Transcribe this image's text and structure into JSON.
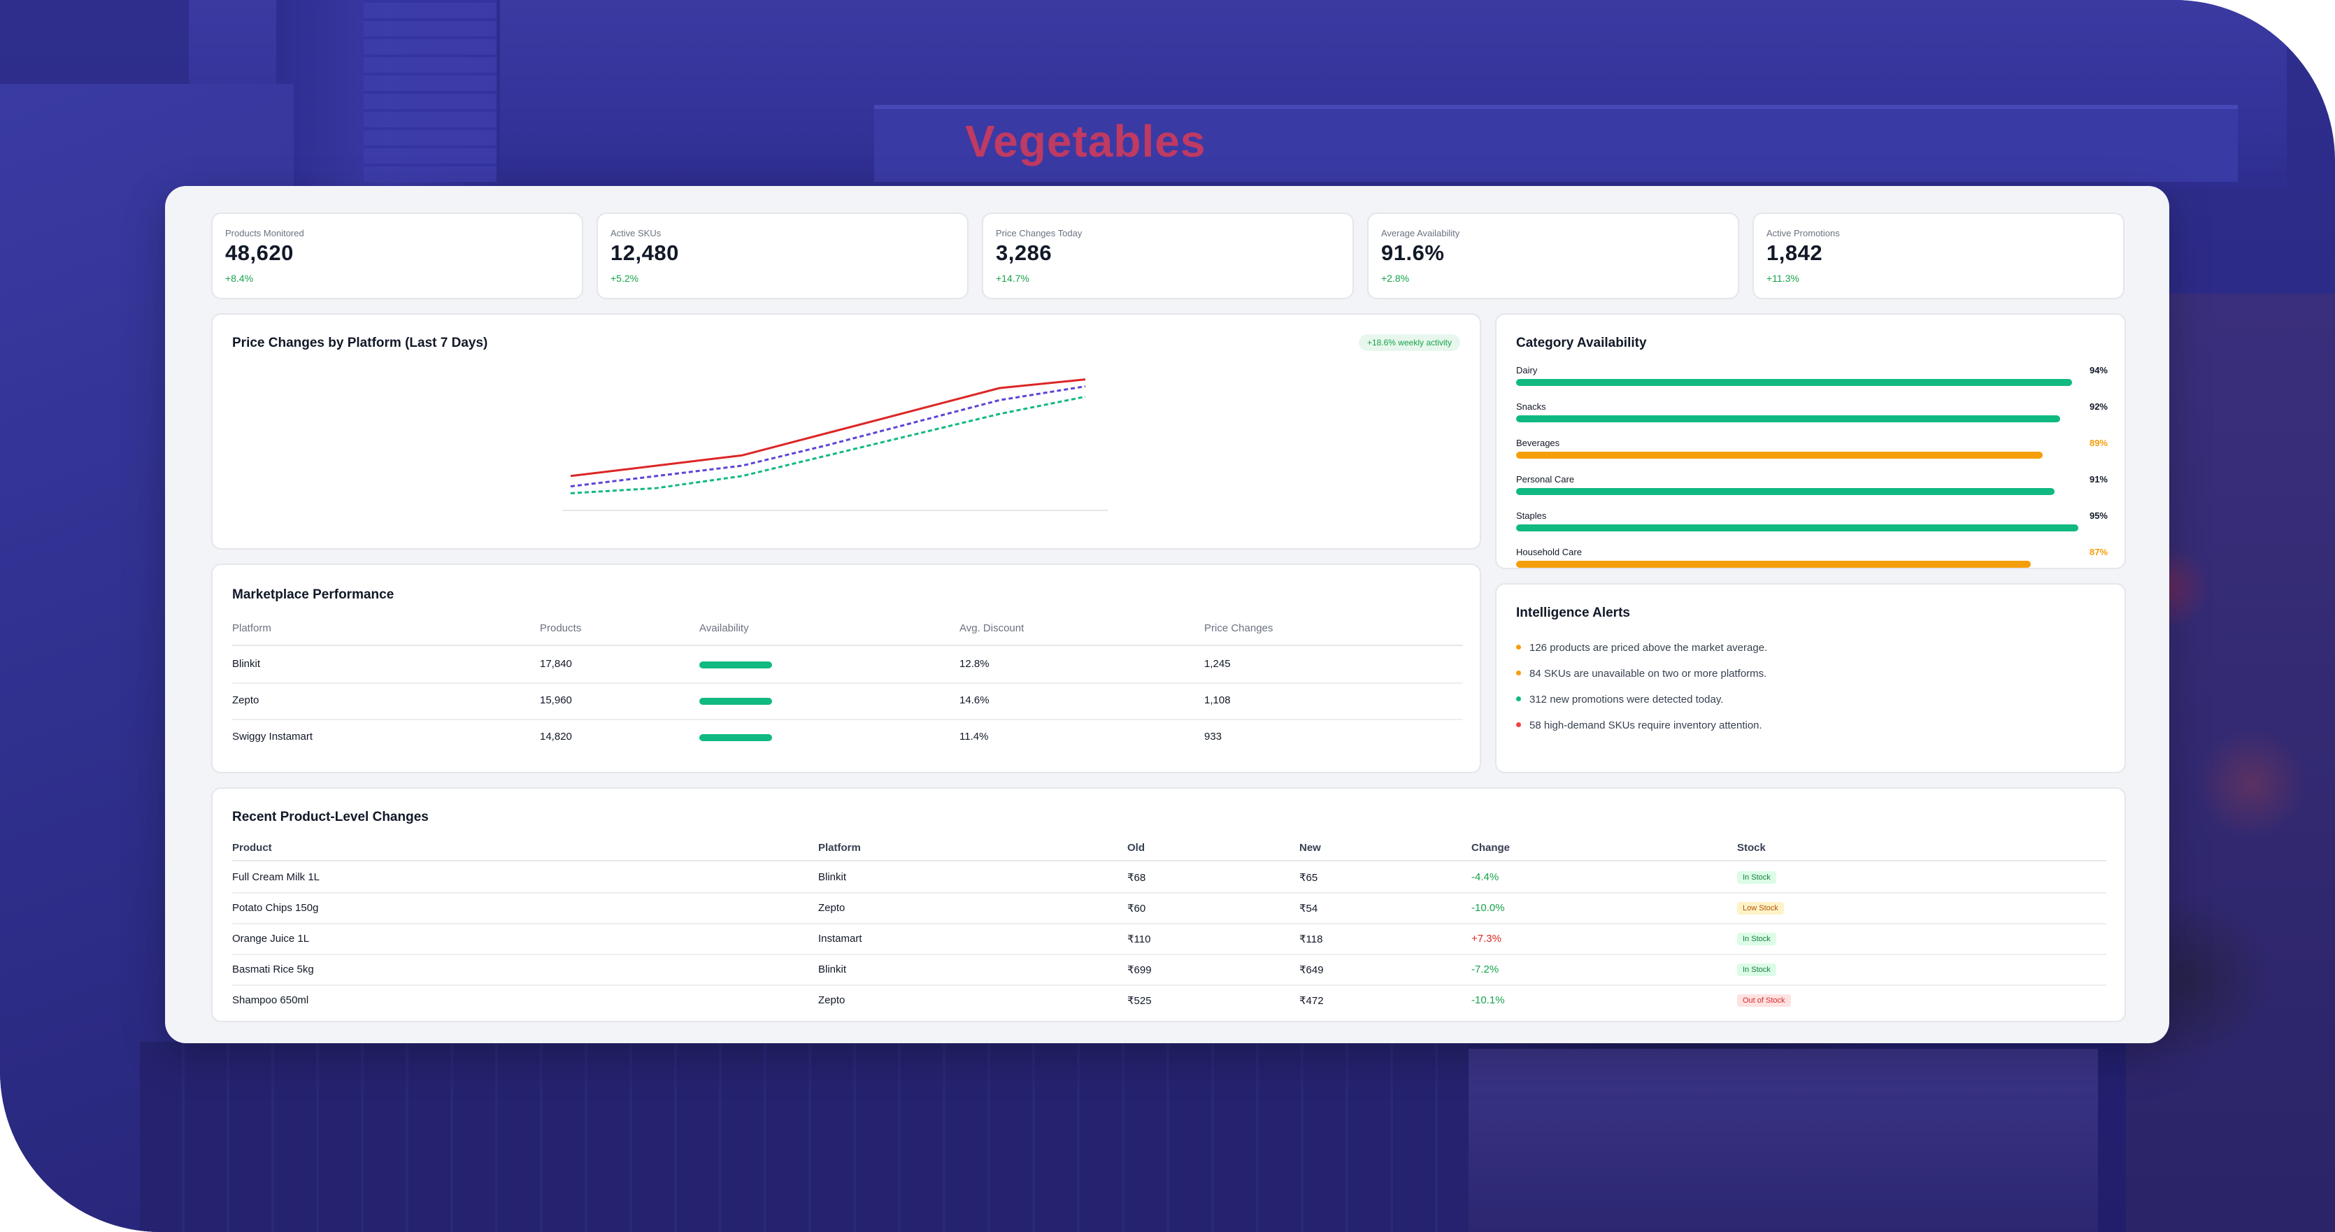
{
  "background": {
    "sign_text": "Vegetables"
  },
  "kpis": [
    {
      "label": "Products Monitored",
      "value": "48,620",
      "delta": "+8.4%"
    },
    {
      "label": "Active SKUs",
      "value": "12,480",
      "delta": "+5.2%"
    },
    {
      "label": "Price Changes Today",
      "value": "3,286",
      "delta": "+14.7%"
    },
    {
      "label": "Average Availability",
      "value": "91.6%",
      "delta": "+2.8%"
    },
    {
      "label": "Active Promotions",
      "value": "1,842",
      "delta": "+11.3%"
    }
  ],
  "price_chart": {
    "title": "Price Changes by Platform (Last 7 Days)",
    "badge": "+18.6% weekly activity"
  },
  "chart_data": {
    "type": "line",
    "title": "Price Changes by Platform (Last 7 Days)",
    "x": [
      1,
      2,
      3,
      4,
      5,
      6,
      7
    ],
    "series": [
      {
        "values": [
          820,
          850,
          880,
          945,
          1010,
          1075,
          1100
        ],
        "color": "#dc2626",
        "style": "solid"
      },
      {
        "values": [
          790,
          820,
          850,
          910,
          975,
          1040,
          1080
        ],
        "color": "#5b45d6",
        "style": "dashed"
      },
      {
        "values": [
          770,
          785,
          820,
          880,
          940,
          1000,
          1050
        ],
        "color": "#10b981",
        "style": "dashed"
      }
    ],
    "ylim": [
      700,
      1150
    ],
    "grid": false
  },
  "category_availability": {
    "title": "Category Availability",
    "items": [
      {
        "name": "Dairy",
        "value": 94,
        "label": "94%",
        "color": "#10b981",
        "text_color": "#111827"
      },
      {
        "name": "Snacks",
        "value": 92,
        "label": "92%",
        "color": "#10b981",
        "text_color": "#111827"
      },
      {
        "name": "Beverages",
        "value": 89,
        "label": "89%",
        "color": "#f59e0b",
        "text_color": "#f59e0b"
      },
      {
        "name": "Personal Care",
        "value": 91,
        "label": "91%",
        "color": "#10b981",
        "text_color": "#111827"
      },
      {
        "name": "Staples",
        "value": 95,
        "label": "95%",
        "color": "#10b981",
        "text_color": "#111827"
      },
      {
        "name": "Household Care",
        "value": 87,
        "label": "87%",
        "color": "#f59e0b",
        "text_color": "#f59e0b"
      }
    ]
  },
  "marketplace": {
    "title": "Marketplace Performance",
    "columns": [
      "Platform",
      "Products",
      "Availability",
      "Avg. Discount",
      "Price Changes"
    ],
    "rows": [
      {
        "platform": "Blinkit",
        "products": "17,840",
        "availability": 0.92,
        "discount": "12.8%",
        "changes": "1,245"
      },
      {
        "platform": "Zepto",
        "products": "15,960",
        "availability": 0.92,
        "discount": "14.6%",
        "changes": "1,108"
      },
      {
        "platform": "Swiggy Instamart",
        "products": "14,820",
        "availability": 0.92,
        "discount": "11.4%",
        "changes": "933"
      }
    ]
  },
  "alerts": {
    "title": "Intelligence Alerts",
    "items": [
      {
        "text": "126 products are priced above the market average.",
        "color": "#f59e0b"
      },
      {
        "text": "84 SKUs are unavailable on two or more platforms.",
        "color": "#f59e0b"
      },
      {
        "text": "312 new promotions were detected today.",
        "color": "#10b981"
      },
      {
        "text": "58 high-demand SKUs require inventory attention.",
        "color": "#ef4444"
      }
    ]
  },
  "recent": {
    "title": "Recent Product-Level Changes",
    "columns": [
      "Product",
      "Platform",
      "Old",
      "New",
      "Change",
      "Stock"
    ],
    "rows": [
      {
        "product": "Full Cream Milk 1L",
        "platform": "Blinkit",
        "old": "₹68",
        "new": "₹65",
        "change": "-4.4%",
        "change_color": "#16a34a",
        "stock": "In Stock",
        "stock_bg": "#dcfce7",
        "stock_fg": "#15803d"
      },
      {
        "product": "Potato Chips 150g",
        "platform": "Zepto",
        "old": "₹60",
        "new": "₹54",
        "change": "-10.0%",
        "change_color": "#16a34a",
        "stock": "Low Stock",
        "stock_bg": "#fef3c7",
        "stock_fg": "#b45309"
      },
      {
        "product": "Orange Juice 1L",
        "platform": "Instamart",
        "old": "₹110",
        "new": "₹118",
        "change": "+7.3%",
        "change_color": "#dc2626",
        "stock": "In Stock",
        "stock_bg": "#dcfce7",
        "stock_fg": "#15803d"
      },
      {
        "product": "Basmati Rice 5kg",
        "platform": "Blinkit",
        "old": "₹699",
        "new": "₹649",
        "change": "-7.2%",
        "change_color": "#16a34a",
        "stock": "In Stock",
        "stock_bg": "#dcfce7",
        "stock_fg": "#15803d"
      },
      {
        "product": "Shampoo 650ml",
        "platform": "Zepto",
        "old": "₹525",
        "new": "₹472",
        "change": "-10.1%",
        "change_color": "#16a34a",
        "stock": "Out of Stock",
        "stock_bg": "#fee2e2",
        "stock_fg": "#dc2626"
      }
    ]
  }
}
